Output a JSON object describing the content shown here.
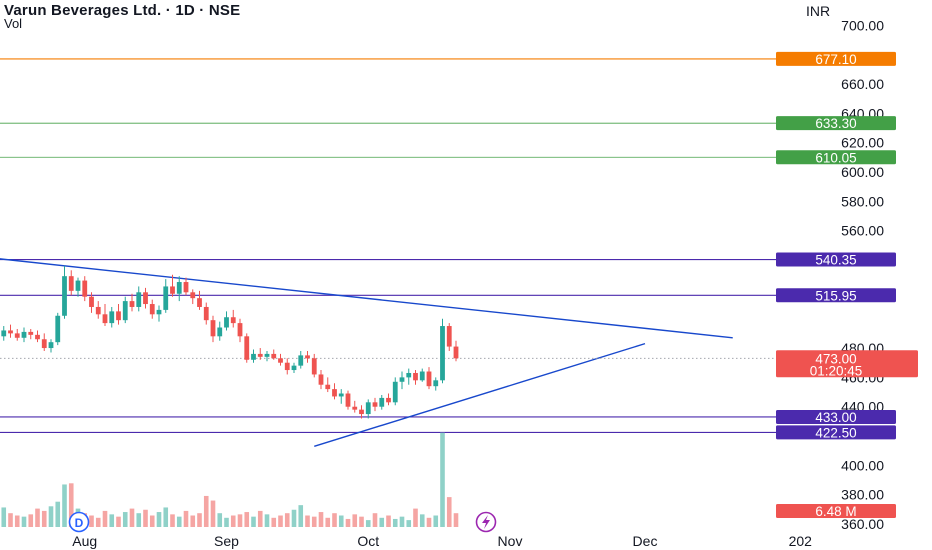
{
  "header": {
    "title": "Varun Beverages Ltd. · 1D · NSE",
    "subtitle": "Vol",
    "currency": "INR"
  },
  "colors": {
    "up": "#26a69a",
    "down": "#ef5350",
    "vol_up": "#8fd1c8",
    "vol_down": "#f5a5a3",
    "trendline": "#1848cc",
    "orange": "#f57c00",
    "green": "#43a047",
    "purple": "#4b2aad",
    "red_tag": "#ef5350"
  },
  "chart_data": {
    "type": "candlestick",
    "y_axis": {
      "range": [
        358,
        705
      ],
      "ticks": [
        {
          "value": 700,
          "label": "700.00"
        },
        {
          "value": 660,
          "label": "660.00"
        },
        {
          "value": 640,
          "label": "640.00"
        },
        {
          "value": 620,
          "label": "620.00"
        },
        {
          "value": 600,
          "label": "600.00"
        },
        {
          "value": 580,
          "label": "580.00"
        },
        {
          "value": 560,
          "label": "560.00"
        },
        {
          "value": 480,
          "label": "480.00"
        },
        {
          "value": 460,
          "label": "460.00"
        },
        {
          "value": 440,
          "label": "440.00"
        },
        {
          "value": 400,
          "label": "400.00"
        },
        {
          "value": 380,
          "label": "380.00"
        },
        {
          "value": 360,
          "label": "360.00"
        }
      ]
    },
    "x_axis": {
      "labels": [
        {
          "label": "Aug",
          "bar": 13
        },
        {
          "label": "Sep",
          "bar": 34
        },
        {
          "label": "Oct",
          "bar": 55
        },
        {
          "label": "Nov",
          "bar": 76
        },
        {
          "label": "Dec",
          "bar": 96
        },
        {
          "label": "202",
          "bar": 119
        }
      ]
    },
    "horizontal_levels": [
      {
        "value": 677.1,
        "label": "677.10",
        "color": "orange"
      },
      {
        "value": 633.3,
        "label": "633.30",
        "color": "green"
      },
      {
        "value": 610.05,
        "label": "610.05",
        "color": "green"
      },
      {
        "value": 540.35,
        "label": "540.35",
        "color": "purple"
      },
      {
        "value": 515.95,
        "label": "515.95",
        "color": "purple"
      },
      {
        "value": 433.0,
        "label": "433.00",
        "color": "purple"
      },
      {
        "value": 422.5,
        "label": "422.50",
        "color": "purple"
      }
    ],
    "last_price": {
      "value": 473.0,
      "label": "473.00",
      "countdown": "01:20:45"
    },
    "volume_tag": {
      "label": "6.48 M"
    },
    "trendlines": [
      {
        "from": {
          "bar": 0,
          "price": 541
        },
        "to": {
          "bar": 109,
          "price": 487
        }
      },
      {
        "from": {
          "bar": 47,
          "price": 413
        },
        "to": {
          "bar": 96,
          "price": 483
        }
      }
    ],
    "candles": [
      {
        "o": 491,
        "h": 494,
        "l": 480,
        "c": 488
      },
      {
        "o": 488,
        "h": 495,
        "l": 485,
        "c": 492
      },
      {
        "o": 492,
        "h": 496,
        "l": 487,
        "c": 490
      },
      {
        "o": 490,
        "h": 493,
        "l": 485,
        "c": 487
      },
      {
        "o": 487,
        "h": 494,
        "l": 484,
        "c": 491
      },
      {
        "o": 491,
        "h": 493,
        "l": 486,
        "c": 489
      },
      {
        "o": 489,
        "h": 492,
        "l": 484,
        "c": 486
      },
      {
        "o": 486,
        "h": 490,
        "l": 478,
        "c": 480
      },
      {
        "o": 480,
        "h": 486,
        "l": 477,
        "c": 484
      },
      {
        "o": 484,
        "h": 504,
        "l": 482,
        "c": 502
      },
      {
        "o": 502,
        "h": 536,
        "l": 500,
        "c": 529
      },
      {
        "o": 529,
        "h": 533,
        "l": 516,
        "c": 519
      },
      {
        "o": 519,
        "h": 528,
        "l": 515,
        "c": 526
      },
      {
        "o": 526,
        "h": 529,
        "l": 512,
        "c": 515
      },
      {
        "o": 515,
        "h": 518,
        "l": 504,
        "c": 508
      },
      {
        "o": 508,
        "h": 512,
        "l": 500,
        "c": 503
      },
      {
        "o": 503,
        "h": 510,
        "l": 495,
        "c": 497
      },
      {
        "o": 497,
        "h": 508,
        "l": 494,
        "c": 505
      },
      {
        "o": 505,
        "h": 510,
        "l": 496,
        "c": 499
      },
      {
        "o": 499,
        "h": 515,
        "l": 497,
        "c": 512
      },
      {
        "o": 512,
        "h": 517,
        "l": 505,
        "c": 508
      },
      {
        "o": 508,
        "h": 522,
        "l": 505,
        "c": 518
      },
      {
        "o": 518,
        "h": 521,
        "l": 507,
        "c": 510
      },
      {
        "o": 510,
        "h": 513,
        "l": 500,
        "c": 503
      },
      {
        "o": 503,
        "h": 509,
        "l": 498,
        "c": 506
      },
      {
        "o": 506,
        "h": 527,
        "l": 504,
        "c": 522
      },
      {
        "o": 522,
        "h": 530,
        "l": 515,
        "c": 517
      },
      {
        "o": 517,
        "h": 529,
        "l": 512,
        "c": 525
      },
      {
        "o": 525,
        "h": 528,
        "l": 516,
        "c": 518
      },
      {
        "o": 518,
        "h": 520,
        "l": 510,
        "c": 514
      },
      {
        "o": 514,
        "h": 519,
        "l": 506,
        "c": 508
      },
      {
        "o": 508,
        "h": 511,
        "l": 496,
        "c": 499
      },
      {
        "o": 499,
        "h": 502,
        "l": 484,
        "c": 488
      },
      {
        "o": 488,
        "h": 498,
        "l": 485,
        "c": 494
      },
      {
        "o": 494,
        "h": 505,
        "l": 492,
        "c": 501
      },
      {
        "o": 501,
        "h": 506,
        "l": 494,
        "c": 497
      },
      {
        "o": 497,
        "h": 500,
        "l": 484,
        "c": 488
      },
      {
        "o": 488,
        "h": 490,
        "l": 470,
        "c": 472
      },
      {
        "o": 472,
        "h": 479,
        "l": 470,
        "c": 476
      },
      {
        "o": 476,
        "h": 480,
        "l": 472,
        "c": 474
      },
      {
        "o": 474,
        "h": 478,
        "l": 471,
        "c": 476
      },
      {
        "o": 476,
        "h": 479,
        "l": 472,
        "c": 473
      },
      {
        "o": 473,
        "h": 476,
        "l": 468,
        "c": 470
      },
      {
        "o": 470,
        "h": 473,
        "l": 462,
        "c": 465
      },
      {
        "o": 465,
        "h": 470,
        "l": 463,
        "c": 468
      },
      {
        "o": 468,
        "h": 478,
        "l": 466,
        "c": 475
      },
      {
        "o": 475,
        "h": 478,
        "l": 470,
        "c": 473
      },
      {
        "o": 473,
        "h": 476,
        "l": 460,
        "c": 462
      },
      {
        "o": 462,
        "h": 465,
        "l": 452,
        "c": 455
      },
      {
        "o": 455,
        "h": 460,
        "l": 450,
        "c": 452
      },
      {
        "o": 452,
        "h": 456,
        "l": 445,
        "c": 447
      },
      {
        "o": 447,
        "h": 452,
        "l": 442,
        "c": 449
      },
      {
        "o": 449,
        "h": 451,
        "l": 438,
        "c": 440
      },
      {
        "o": 440,
        "h": 444,
        "l": 436,
        "c": 438
      },
      {
        "o": 438,
        "h": 441,
        "l": 432,
        "c": 435
      },
      {
        "o": 435,
        "h": 445,
        "l": 432,
        "c": 443
      },
      {
        "o": 443,
        "h": 446,
        "l": 437,
        "c": 440
      },
      {
        "o": 440,
        "h": 448,
        "l": 438,
        "c": 446
      },
      {
        "o": 446,
        "h": 449,
        "l": 441,
        "c": 443
      },
      {
        "o": 443,
        "h": 460,
        "l": 441,
        "c": 457
      },
      {
        "o": 457,
        "h": 464,
        "l": 452,
        "c": 460
      },
      {
        "o": 460,
        "h": 466,
        "l": 455,
        "c": 463
      },
      {
        "o": 463,
        "h": 465,
        "l": 455,
        "c": 458
      },
      {
        "o": 458,
        "h": 466,
        "l": 457,
        "c": 464
      },
      {
        "o": 464,
        "h": 467,
        "l": 452,
        "c": 454
      },
      {
        "o": 454,
        "h": 460,
        "l": 451,
        "c": 458
      },
      {
        "o": 458,
        "h": 500,
        "l": 456,
        "c": 495
      },
      {
        "o": 495,
        "h": 497,
        "l": 478,
        "c": 481
      },
      {
        "o": 481,
        "h": 485,
        "l": 471,
        "c": 473
      }
    ],
    "volumes": [
      2.8,
      1.7,
      1.2,
      1.0,
      0.9,
      1.1,
      1.6,
      1.4,
      1.8,
      2.2,
      3.7,
      3.8,
      1.6,
      1.2,
      1.0,
      0.8,
      1.4,
      1.1,
      0.9,
      1.3,
      1.6,
      1.2,
      1.5,
      1.0,
      1.3,
      1.7,
      1.1,
      0.9,
      1.4,
      1.0,
      1.2,
      2.7,
      2.3,
      1.2,
      0.8,
      1.0,
      1.1,
      1.3,
      0.9,
      1.4,
      1.1,
      0.8,
      1.0,
      1.2,
      1.5,
      1.9,
      1.0,
      0.9,
      1.3,
      0.8,
      1.2,
      1.0,
      0.7,
      1.1,
      0.9,
      0.6,
      1.2,
      0.8,
      1.0,
      0.7,
      0.9,
      0.6,
      1.6,
      1.1,
      0.8,
      1.0,
      8.2,
      2.6,
      1.2
    ]
  }
}
